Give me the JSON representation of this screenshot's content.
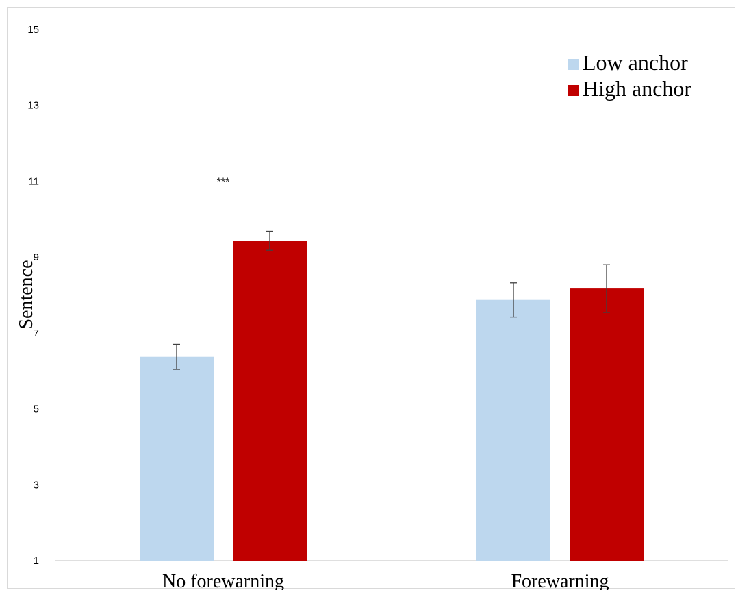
{
  "chart_data": {
    "type": "bar",
    "categories": [
      "No forewarning",
      "Forewarning"
    ],
    "series": [
      {
        "name": "Low anchor",
        "values": [
          6.37,
          7.87
        ],
        "error": [
          0.33,
          0.45
        ],
        "color": "#bdd7ee"
      },
      {
        "name": "High anchor",
        "values": [
          9.43,
          8.17
        ],
        "error": [
          0.25,
          0.63
        ],
        "color": "#c00000"
      }
    ],
    "ylabel": "Sentence",
    "xlabel": "",
    "ylim": [
      1,
      15
    ],
    "yticks": [
      "1",
      "3",
      "5",
      "7",
      "9",
      "11",
      "13",
      "15"
    ],
    "grid": false,
    "legend_position": "top-right",
    "annotations": [
      {
        "text": "***",
        "category": "No forewarning",
        "y": 11
      }
    ]
  }
}
